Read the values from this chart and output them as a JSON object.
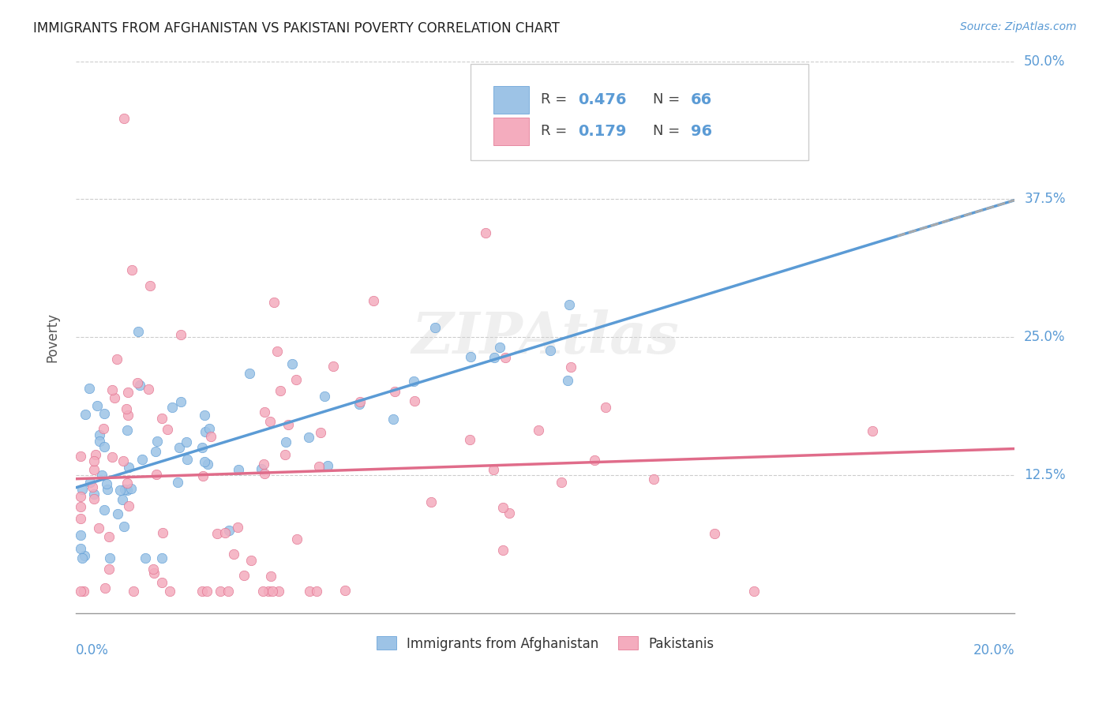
{
  "title": "IMMIGRANTS FROM AFGHANISTAN VS PAKISTANI POVERTY CORRELATION CHART",
  "source": "Source: ZipAtlas.com",
  "ylabel": "Poverty",
  "yticks": [
    0.0,
    0.125,
    0.25,
    0.375,
    0.5
  ],
  "ytick_labels": [
    "",
    "12.5%",
    "25.0%",
    "37.5%",
    "50.0%"
  ],
  "watermark": "ZIPAtlas",
  "legend1_r": "0.476",
  "legend1_n": "66",
  "legend2_r": "0.179",
  "legend2_n": "96",
  "color_blue": "#9DC3E6",
  "color_blue_dark": "#5B9BD5",
  "color_pink": "#F4ACBE",
  "color_pink_dark": "#E06C8A",
  "color_gray_dashed": "#AAAAAA",
  "xlim": [
    0.0,
    0.2
  ],
  "ylim": [
    0.0,
    0.5
  ],
  "background_color": "#FFFFFF",
  "grid_color": "#CCCCCC",
  "label_blue": "Immigrants from Afghanistan",
  "label_pink": "Pakistanis"
}
